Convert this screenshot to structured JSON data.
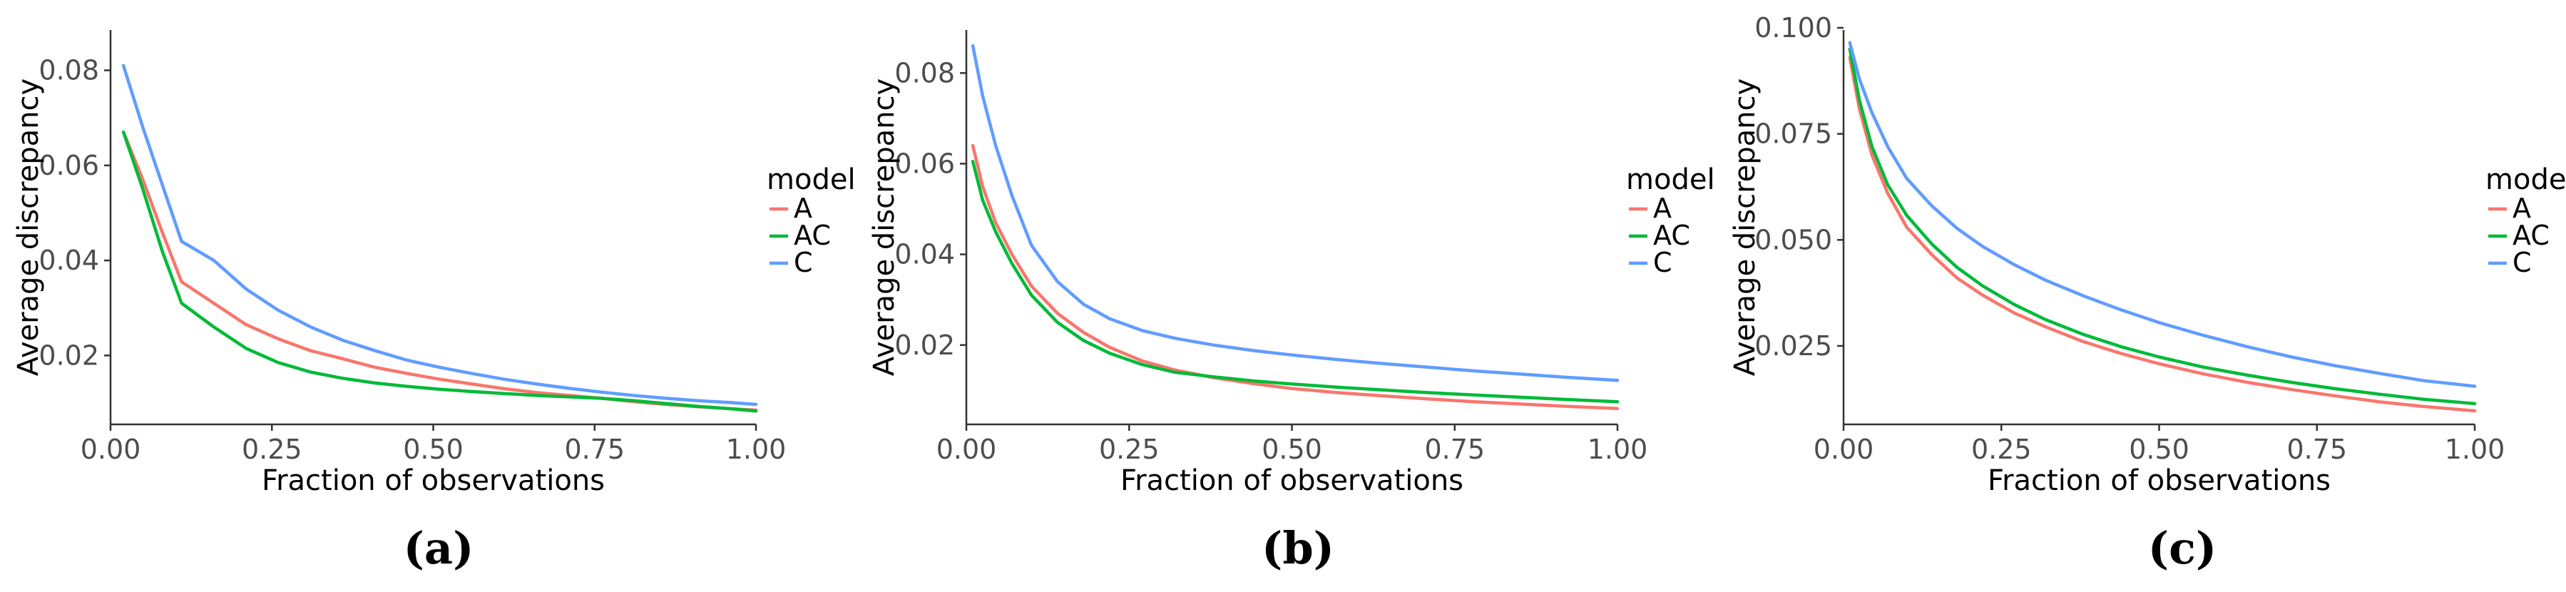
{
  "chart_data": [
    {
      "type": "line",
      "caption": "(a)",
      "xlabel": "Fraction of observations",
      "ylabel": "Average discrepancy",
      "xlim": [
        0.0,
        1.0
      ],
      "ylim": [
        0.0055,
        0.0885
      ],
      "xticks": [
        0.0,
        0.25,
        0.5,
        0.75,
        1.0
      ],
      "xtick_labels": [
        "0.00",
        "0.25",
        "0.50",
        "0.75",
        "1.00"
      ],
      "yticks": [
        0.02,
        0.04,
        0.06,
        0.08
      ],
      "ytick_labels": [
        "0.02",
        "0.04",
        "0.06",
        "0.08"
      ],
      "grid": false,
      "legend": {
        "title": "model",
        "position": "right"
      },
      "series": [
        {
          "name": "A",
          "color": "#F8766D",
          "x": [
            0.02,
            0.05,
            0.08,
            0.11,
            0.16,
            0.21,
            0.26,
            0.31,
            0.36,
            0.41,
            0.46,
            0.51,
            0.56,
            0.61,
            0.66,
            0.71,
            0.76,
            0.81,
            0.86,
            0.91,
            0.96,
            1.0
          ],
          "y": [
            0.067,
            0.057,
            0.046,
            0.0355,
            0.031,
            0.0265,
            0.0235,
            0.021,
            0.0193,
            0.0175,
            0.0162,
            0.015,
            0.014,
            0.013,
            0.0122,
            0.0116,
            0.011,
            0.0103,
            0.0097,
            0.0092,
            0.0088,
            0.0085
          ]
        },
        {
          "name": "AC",
          "color": "#00BA38",
          "x": [
            0.02,
            0.05,
            0.08,
            0.11,
            0.16,
            0.21,
            0.26,
            0.31,
            0.36,
            0.41,
            0.46,
            0.51,
            0.56,
            0.61,
            0.66,
            0.71,
            0.76,
            0.81,
            0.86,
            0.91,
            0.96,
            1.0
          ],
          "y": [
            0.067,
            0.055,
            0.042,
            0.031,
            0.026,
            0.0215,
            0.0185,
            0.0165,
            0.0152,
            0.0142,
            0.0135,
            0.0129,
            0.0124,
            0.012,
            0.0116,
            0.0113,
            0.011,
            0.0105,
            0.0099,
            0.0093,
            0.0088,
            0.0083
          ]
        },
        {
          "name": "C",
          "color": "#619CFF",
          "x": [
            0.02,
            0.05,
            0.08,
            0.11,
            0.16,
            0.21,
            0.26,
            0.31,
            0.36,
            0.41,
            0.46,
            0.51,
            0.56,
            0.61,
            0.66,
            0.71,
            0.76,
            0.81,
            0.86,
            0.91,
            0.96,
            1.0
          ],
          "y": [
            0.081,
            0.068,
            0.056,
            0.044,
            0.04,
            0.034,
            0.0295,
            0.026,
            0.0232,
            0.021,
            0.019,
            0.0175,
            0.0162,
            0.015,
            0.014,
            0.0131,
            0.0123,
            0.0116,
            0.011,
            0.0105,
            0.0101,
            0.0097
          ]
        }
      ]
    },
    {
      "type": "line",
      "caption": "(b)",
      "xlabel": "Fraction of observations",
      "ylabel": "Average discrepancy",
      "xlim": [
        0.0,
        1.0
      ],
      "ylim": [
        0.0025,
        0.0895
      ],
      "xticks": [
        0.0,
        0.25,
        0.5,
        0.75,
        1.0
      ],
      "xtick_labels": [
        "0.00",
        "0.25",
        "0.50",
        "0.75",
        "1.00"
      ],
      "yticks": [
        0.02,
        0.04,
        0.06,
        0.08
      ],
      "ytick_labels": [
        "0.02",
        "0.04",
        "0.06",
        "0.08"
      ],
      "grid": false,
      "legend": {
        "title": "model",
        "position": "right"
      },
      "series": [
        {
          "name": "A",
          "color": "#F8766D",
          "x": [
            0.01,
            0.025,
            0.045,
            0.07,
            0.1,
            0.14,
            0.18,
            0.22,
            0.27,
            0.32,
            0.38,
            0.44,
            0.5,
            0.57,
            0.64,
            0.71,
            0.78,
            0.85,
            0.92,
            1.0
          ],
          "y": [
            0.064,
            0.055,
            0.047,
            0.04,
            0.033,
            0.027,
            0.0228,
            0.0195,
            0.0165,
            0.0145,
            0.0128,
            0.0115,
            0.0104,
            0.0095,
            0.0088,
            0.0081,
            0.0075,
            0.007,
            0.0065,
            0.006
          ]
        },
        {
          "name": "AC",
          "color": "#00BA38",
          "x": [
            0.01,
            0.025,
            0.045,
            0.07,
            0.1,
            0.14,
            0.18,
            0.22,
            0.27,
            0.32,
            0.38,
            0.44,
            0.5,
            0.57,
            0.64,
            0.71,
            0.78,
            0.85,
            0.92,
            1.0
          ],
          "y": [
            0.0605,
            0.052,
            0.045,
            0.038,
            0.031,
            0.025,
            0.021,
            0.0182,
            0.0157,
            0.014,
            0.013,
            0.0121,
            0.0114,
            0.0107,
            0.0101,
            0.0095,
            0.009,
            0.0085,
            0.008,
            0.0075
          ]
        },
        {
          "name": "C",
          "color": "#619CFF",
          "x": [
            0.01,
            0.025,
            0.045,
            0.07,
            0.1,
            0.14,
            0.18,
            0.22,
            0.27,
            0.32,
            0.38,
            0.44,
            0.5,
            0.57,
            0.64,
            0.71,
            0.78,
            0.85,
            0.92,
            1.0
          ],
          "y": [
            0.086,
            0.075,
            0.064,
            0.053,
            0.042,
            0.034,
            0.029,
            0.0258,
            0.0232,
            0.0215,
            0.02,
            0.0188,
            0.0178,
            0.0168,
            0.0159,
            0.0151,
            0.0143,
            0.0136,
            0.0129,
            0.0122
          ]
        }
      ]
    },
    {
      "type": "line",
      "caption": "(c)",
      "xlabel": "Fraction of observations",
      "ylabel": "Average discrepancy",
      "xlim": [
        0.0,
        1.0
      ],
      "ylim": [
        0.0065,
        0.0995
      ],
      "xticks": [
        0.0,
        0.25,
        0.5,
        0.75,
        1.0
      ],
      "xtick_labels": [
        "0.00",
        "0.25",
        "0.50",
        "0.75",
        "1.00"
      ],
      "yticks": [
        0.025,
        0.05,
        0.075,
        0.1
      ],
      "ytick_labels": [
        "0.025",
        "0.050",
        "0.075",
        "0.100"
      ],
      "grid": false,
      "legend": {
        "title": "model",
        "position": "right"
      },
      "series": [
        {
          "name": "A",
          "color": "#F8766D",
          "x": [
            0.01,
            0.025,
            0.045,
            0.07,
            0.1,
            0.14,
            0.18,
            0.22,
            0.27,
            0.32,
            0.38,
            0.44,
            0.5,
            0.57,
            0.64,
            0.71,
            0.78,
            0.85,
            0.92,
            1.0
          ],
          "y": [
            0.093,
            0.081,
            0.07,
            0.061,
            0.053,
            0.0465,
            0.041,
            0.037,
            0.0328,
            0.0295,
            0.026,
            0.0232,
            0.0208,
            0.0184,
            0.0164,
            0.0147,
            0.0132,
            0.0118,
            0.0107,
            0.0097
          ]
        },
        {
          "name": "AC",
          "color": "#00BA38",
          "x": [
            0.01,
            0.025,
            0.045,
            0.07,
            0.1,
            0.14,
            0.18,
            0.22,
            0.27,
            0.32,
            0.38,
            0.44,
            0.5,
            0.57,
            0.64,
            0.71,
            0.78,
            0.85,
            0.92,
            1.0
          ],
          "y": [
            0.095,
            0.083,
            0.072,
            0.063,
            0.0558,
            0.049,
            0.0435,
            0.0392,
            0.0348,
            0.0312,
            0.0277,
            0.0248,
            0.0224,
            0.02,
            0.0181,
            0.0164,
            0.0149,
            0.0136,
            0.0124,
            0.0114
          ]
        },
        {
          "name": "C",
          "color": "#619CFF",
          "x": [
            0.01,
            0.025,
            0.045,
            0.07,
            0.1,
            0.14,
            0.18,
            0.22,
            0.27,
            0.32,
            0.38,
            0.44,
            0.5,
            0.57,
            0.64,
            0.71,
            0.78,
            0.85,
            0.92,
            1.0
          ],
          "y": [
            0.0965,
            0.088,
            0.08,
            0.072,
            0.0645,
            0.058,
            0.0527,
            0.0485,
            0.0442,
            0.0405,
            0.0368,
            0.0335,
            0.0305,
            0.0275,
            0.0248,
            0.0224,
            0.0203,
            0.0185,
            0.0168,
            0.0155
          ]
        }
      ]
    }
  ]
}
